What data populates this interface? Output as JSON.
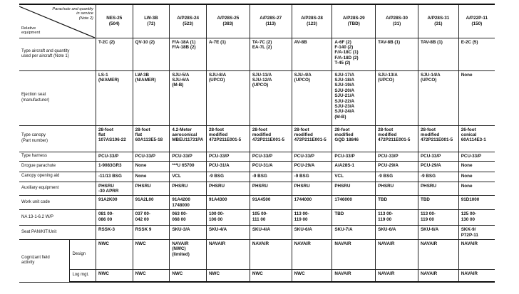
{
  "corner": {
    "top": "Parachute and quantity\nin service\n(Note 2)",
    "bottom": "Relative\nequipment"
  },
  "columns": [
    {
      "name": "NES-25",
      "qty": "(504)"
    },
    {
      "name": "LW-3B",
      "qty": "(72)"
    },
    {
      "name": "A/P28S-24",
      "qty": "(523)"
    },
    {
      "name": "A/P28S-25",
      "qty": "(383)"
    },
    {
      "name": "A/P28S-27",
      "qty": "(113)"
    },
    {
      "name": "A/P28S-28",
      "qty": "(123)"
    },
    {
      "name": "A/P28S-29",
      "qty": "(TBD)"
    },
    {
      "name": "A/P28S-30",
      "qty": "(31)"
    },
    {
      "name": "A/P28S-31",
      "qty": "(31)"
    },
    {
      "name": "A/P22P-11",
      "qty": "(150)"
    }
  ],
  "rows": [
    {
      "label": "Type aircraft and quantity\nused per aircraft (Note 1)",
      "cells": [
        "T-2C (2)",
        "QV-10 (2)",
        "F/A-18A (1)\nF/A-18B (2)",
        "A-7E (1)",
        "TA-7C (2)\nEA-7L (2)",
        "AV-8B",
        "A-6F (2)\nF-140 (2)\nF/A-18C (1)\nF/A-18D (2)\nT-45 (2)",
        "TAV-8B (1)",
        "TAV-8B (1)",
        "E-2C (5)"
      ]
    },
    {
      "label": "Ejection seat\n(manufacturer)",
      "cells": [
        "LS-1\n(N/AMER)",
        "LW-3B\n(N/AMER)",
        "SJU-5/A\nSJU-6/A\n(M-B)",
        "SJU-8/A\n(UPCO)",
        "SJU-11/A\nSJU-12/A\n(UPCO)",
        "SJU-4/A\n(UPCO)",
        "SJU-17/A\nSJU-18/A\nSJU-19/A\nSJU-20/A\nSJU-21/A\nSJU-22/A\nSJU-23/A\nSJU-24/A\n(M-B)",
        "SJU-13/A\n(UPCO)",
        "SJU-14/A\n(UPCO)",
        "None"
      ]
    },
    {
      "label": "Type canopy\n(Part number)",
      "cells": [
        "28-foot\nflat\n107AS106-22",
        "28-foot\nflat\n60A113E5-18",
        "4.2-Meter\naeroconical\nMBEU11731PA",
        "28-foot\nmodified\n472P211E001-5",
        "28-foot\nmodified\n472P211E001-5",
        "28-foot\nmodified\n472P211E001-5",
        "28-foot\nmodified\nGQD 18846",
        "28-foot\nmodified\n472P211E001-5",
        "28-foot\nmodified\n472P211E001-5",
        "26-foot\nconical\n60A114E3-1"
      ]
    },
    {
      "label": "Type harness",
      "cells": [
        "PCU-33/P",
        "PCU-33/P",
        "PCU-33/P",
        "PCU-33/P",
        "PCU-33/P",
        "PCU-33/P",
        "PCU-33/P",
        "PCU-33/P",
        "PCU-33/P",
        "PCU-33/P"
      ]
    },
    {
      "label": "Drogue parachute",
      "cells": [
        "1-9083GR3",
        "None",
        "***U 65700",
        "PCU-31/A",
        "PCU-31/A",
        "PCU-29/A",
        "A/A28S-1",
        "PCU-29/A",
        "PCU-29/A",
        "None"
      ]
    },
    {
      "label": "Canopy opening aid",
      "cells": [
        "-11/13 BSG",
        "None",
        "VCL",
        "-9 BSG",
        "-9 BSG",
        "-9 BSG",
        "VCL",
        "-9 BSG",
        "-9 BSG",
        "None"
      ]
    },
    {
      "label": "Auxiliary equipment",
      "cells": [
        "PHSRU\n-30 APRR",
        "PHSRU",
        "PHSRU",
        "PHSRU",
        "PHSRU",
        "PHSRU",
        "PHSRU",
        "PHSRU",
        "PHSRU",
        "None"
      ]
    },
    {
      "label": "Work unit code",
      "cells": [
        "91A2K00",
        "91A2L00",
        "91A4200\n1748000",
        "91A4300",
        "91A4500",
        "1744000",
        "1746000",
        "TBD",
        "TBD",
        "91D1000"
      ]
    },
    {
      "label": "NA 13-1-6.2 W/P",
      "cells": [
        "081 00-\n086 00",
        "037 00-\n042 00",
        "063 00-\n068 00",
        "100 00-\n106 00",
        "105 00-\n111 00",
        "113 00-\n119 00",
        "TBD",
        "113 00-\n119 00",
        "113 00-\n119 00",
        "125 00-\n130 00"
      ]
    },
    {
      "label": "Seat PAN/KIT/Unit",
      "cells": [
        "RSSK-3",
        "RSSK 9",
        "SKU-3/A",
        "SKU-4/A",
        "SKU-4/A",
        "SKU-6/A",
        "SKU-7/A",
        "SKU-6/A",
        "SKU-6/A",
        "SKK-9/\nP72P-11"
      ]
    }
  ],
  "cognizant": {
    "label": "Cognizant field\nactivity",
    "design": {
      "label": "Design",
      "cells": [
        "NWC",
        "NWC",
        "NAVAIR\n(NWC)\n(limited)",
        "NAVAIR",
        "NAVAIR",
        "NAVAIR",
        "NAVAIR",
        "NAVAIR",
        "NAVAIR",
        "NAVAIR"
      ]
    },
    "logistics": {
      "label": "Log mgt.",
      "cells": [
        "NWC",
        "NWC",
        "NWC",
        "NWC",
        "NWC",
        "NWC",
        "NAVAIR",
        "NAVAIR",
        "NAVAIR",
        "NAVAIR"
      ]
    }
  }
}
